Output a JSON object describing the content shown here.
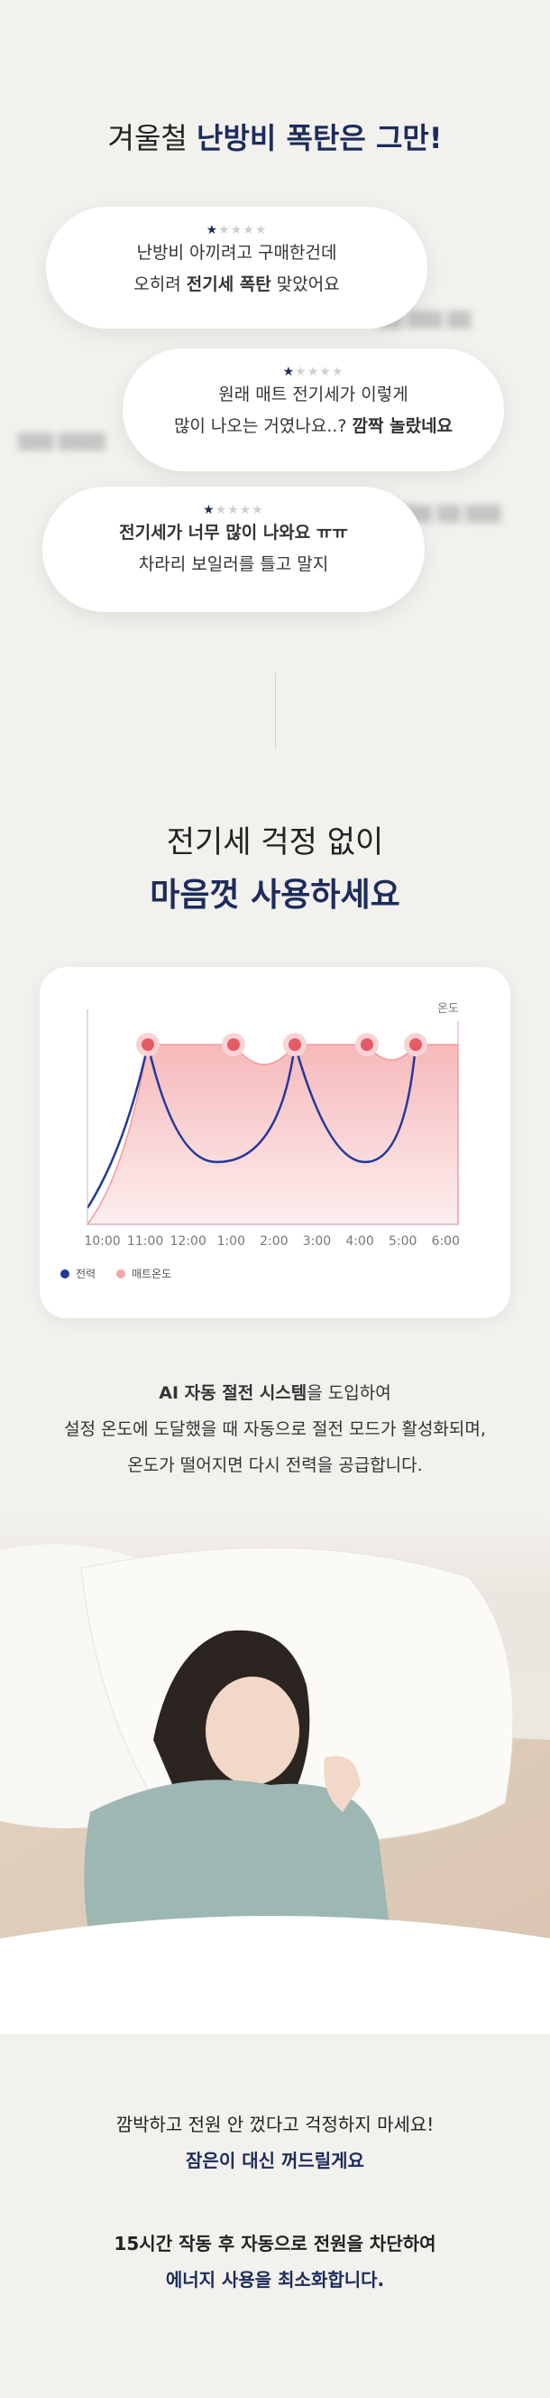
{
  "header": {
    "title": [
      {
        "text": "겨울철 "
      },
      {
        "text": "난방비 폭탄은 그만!",
        "bold": true
      }
    ]
  },
  "reviews": [
    {
      "rating": 1,
      "lines": [
        [
          {
            "text": "난방비 아끼려고 구매한건데"
          }
        ],
        [
          {
            "text": "오히려 "
          },
          {
            "text": "전기세 폭탄",
            "bold": true
          },
          {
            "text": " 맞았어요"
          }
        ]
      ]
    },
    {
      "rating": 1,
      "lines": [
        [
          {
            "text": "원래 매트 전기세가 이렇게"
          }
        ],
        [
          {
            "text": "많이 나오는 거였나요..? "
          },
          {
            "text": "깜짝 놀랐네요",
            "bold": true
          }
        ]
      ]
    },
    {
      "rating": 1,
      "lines": [
        [
          {
            "text": "전기세가 너무 많이 나와요 ㅠㅠ",
            "bold": true
          }
        ],
        [
          {
            "text": "차라리 보일러를 틀고 말지"
          }
        ]
      ]
    }
  ],
  "rating_max": 5,
  "heading": {
    "line1": "전기세 걱정 없이",
    "line2": "마음껏 사용하세요"
  },
  "chart": {
    "y_label": "온도",
    "x_labels": [
      "10:00",
      "11:00",
      "12:00",
      "1:00",
      "2:00",
      "3:00",
      "4:00",
      "5:00",
      "6:00"
    ],
    "legend": [
      {
        "name": "전력",
        "color": "#24389a"
      },
      {
        "name": "매트온도",
        "color": "#f3a7a9"
      }
    ]
  },
  "description": [
    [
      {
        "text": "AI 자동 절전 시스템",
        "bold": true
      },
      {
        "text": "을 도입하여"
      }
    ],
    [
      {
        "text": "설정 온도에 도달했을 때 자동으로 절전 모드가 활성화되며,"
      }
    ],
    [
      {
        "text": "온도가 떨어지면 다시 전력을 공급합니다."
      }
    ]
  ],
  "footer": [
    [
      [
        {
          "text": "깜박하고 전원 안 껐다고 걱정하지 마세요!"
        }
      ],
      [
        {
          "text": "잠은이 대신 꺼드릴게요",
          "bold": true,
          "navy": true
        }
      ]
    ],
    [
      [
        {
          "text": "15시간 작동 후 자동으로 전원을 차단하여",
          "bold": true
        }
      ],
      [
        {
          "text": "에너지 사용을 최소화합니다.",
          "bold": true,
          "navy": true
        }
      ]
    ]
  ]
}
